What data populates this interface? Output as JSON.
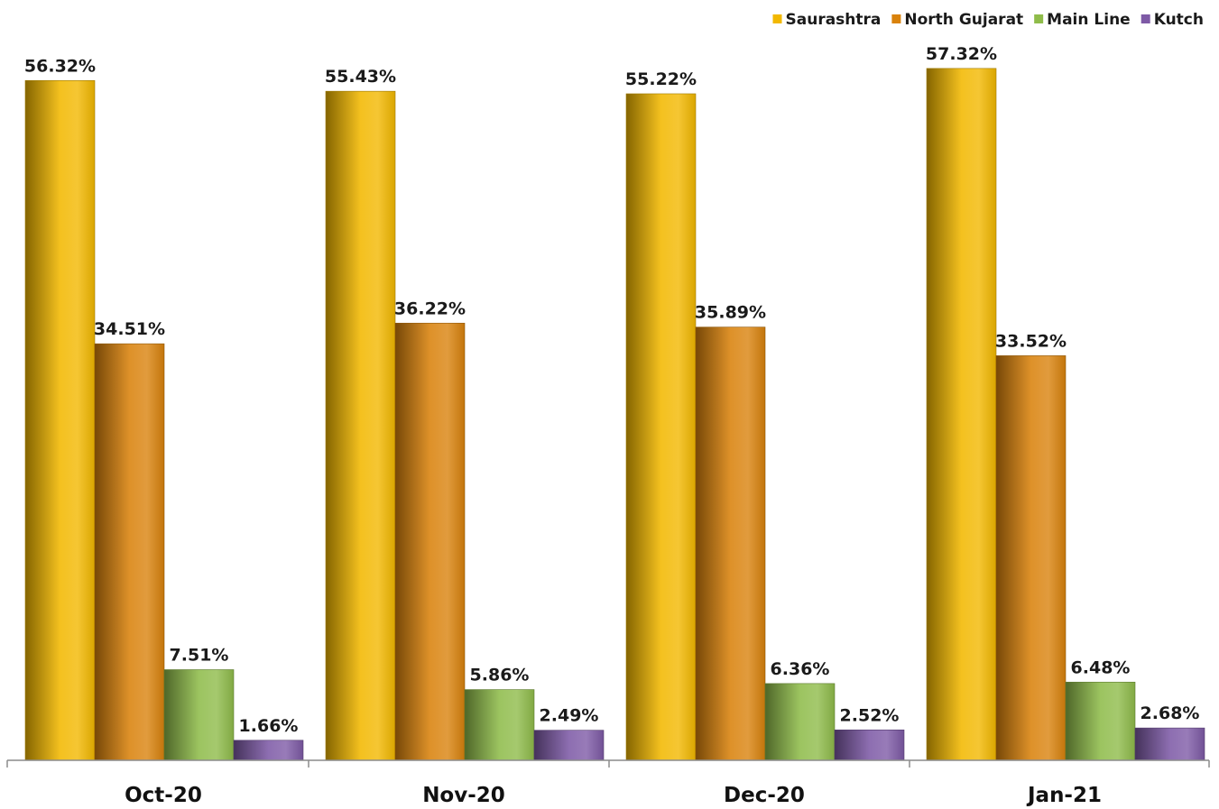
{
  "chart_data": {
    "type": "bar",
    "title": "",
    "xlabel": "",
    "ylabel": "",
    "ylim": [
      0,
      60
    ],
    "grid": false,
    "legend_position": "top-right",
    "categories": [
      "Oct-20",
      "Nov-20",
      "Dec-20",
      "Jan-21"
    ],
    "series": [
      {
        "name": "Saurashtra",
        "color": "#f2b800",
        "values": [
          56.32,
          55.43,
          55.22,
          57.32
        ],
        "labels": [
          "56.32%",
          "55.43%",
          "55.22%",
          "57.32%"
        ]
      },
      {
        "name": "North Gujarat",
        "color": "#d9820c",
        "values": [
          34.51,
          36.22,
          35.89,
          33.52
        ],
        "labels": [
          "34.51%",
          "36.22%",
          "35.89%",
          "33.52%"
        ]
      },
      {
        "name": "Main Line",
        "color": "#8fbc4a",
        "values": [
          7.51,
          5.86,
          6.36,
          6.48
        ],
        "labels": [
          "7.51%",
          "5.86%",
          "6.36%",
          "6.48%"
        ]
      },
      {
        "name": "Kutch",
        "color": "#7e5aa6",
        "values": [
          1.66,
          2.49,
          2.52,
          2.68
        ],
        "labels": [
          "1.66%",
          "2.49%",
          "2.52%",
          "2.68%"
        ]
      }
    ]
  }
}
